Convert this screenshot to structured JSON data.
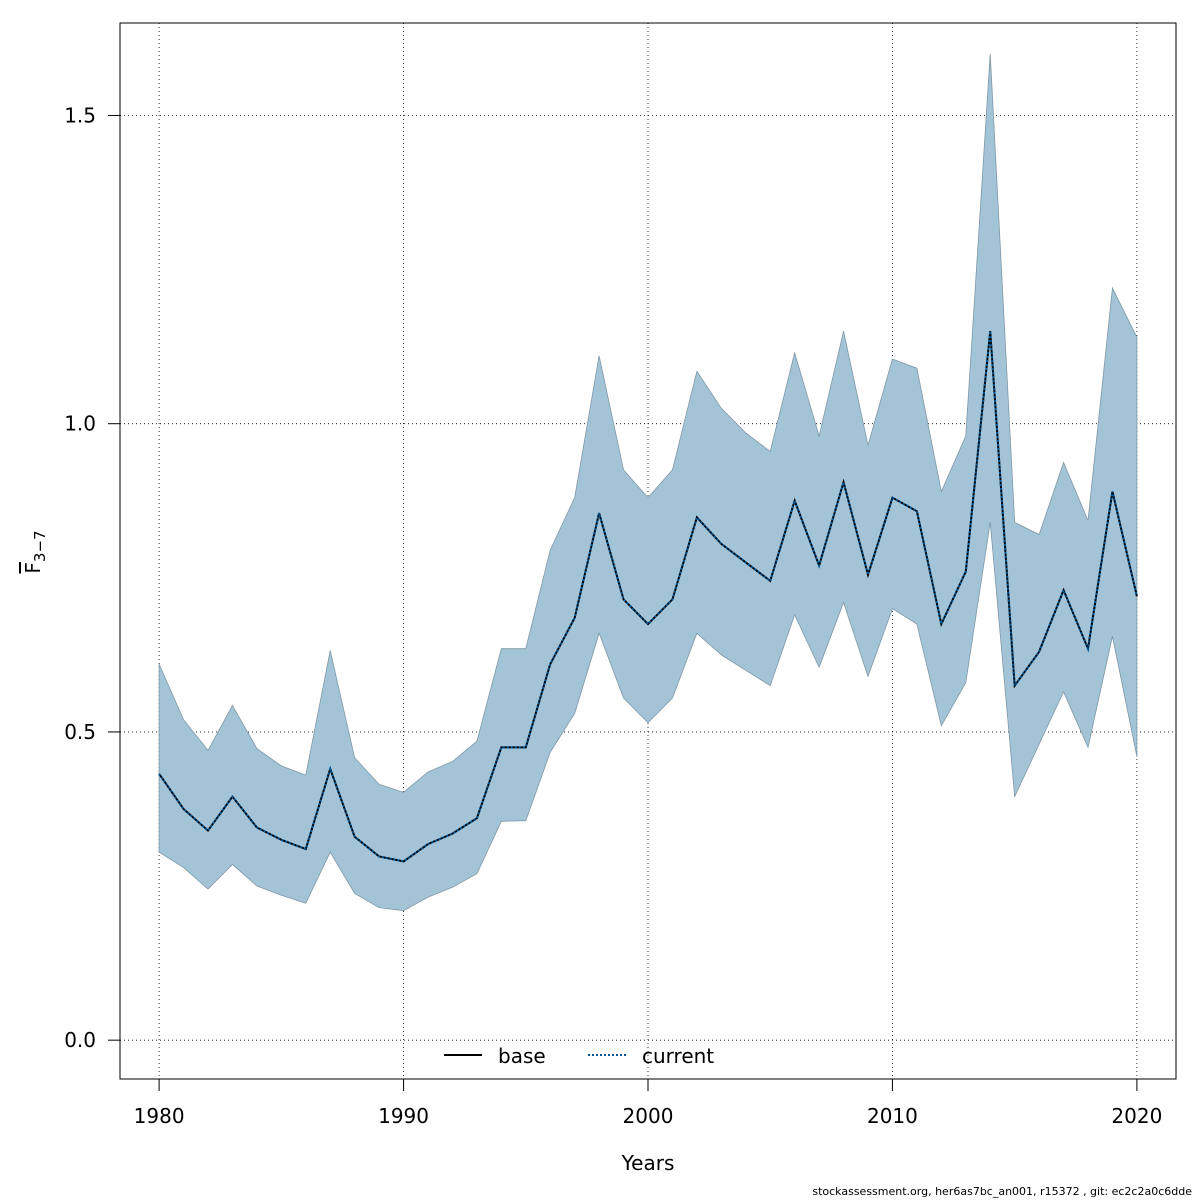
{
  "chart_data": {
    "type": "line",
    "xlabel": "Years",
    "ylabel": "F",
    "ylabel_subscript": "3−7",
    "xlim": [
      1978.4,
      2021.6
    ],
    "ylim": [
      -0.063,
      1.65
    ],
    "xticks": [
      1980,
      1990,
      2000,
      2010,
      2020
    ],
    "xtick_labels": [
      "1980",
      "1990",
      "2000",
      "2010",
      "2020"
    ],
    "yticks": [
      0.0,
      0.5,
      1.0,
      1.5
    ],
    "ytick_labels": [
      "0.0",
      "0.5",
      "1.0",
      "1.5"
    ],
    "grid": true,
    "legend_position": "bottom-center",
    "x": [
      1980,
      1981,
      1982,
      1983,
      1984,
      1985,
      1986,
      1987,
      1988,
      1989,
      1990,
      1991,
      1992,
      1993,
      1994,
      1995,
      1996,
      1997,
      1998,
      1999,
      2000,
      2001,
      2002,
      2003,
      2004,
      2005,
      2006,
      2007,
      2008,
      2009,
      2010,
      2011,
      2012,
      2013,
      2014,
      2015,
      2016,
      2017,
      2018,
      2019,
      2020
    ],
    "band": {
      "color": "#a3c4d6",
      "lower": [
        0.305,
        0.28,
        0.245,
        0.285,
        0.25,
        0.235,
        0.222,
        0.305,
        0.238,
        0.215,
        0.21,
        0.232,
        0.248,
        0.27,
        0.355,
        0.356,
        0.467,
        0.53,
        0.66,
        0.555,
        0.515,
        0.555,
        0.66,
        0.625,
        0.6,
        0.575,
        0.69,
        0.605,
        0.71,
        0.59,
        0.7,
        0.675,
        0.51,
        0.58,
        0.84,
        0.395,
        0.48,
        0.565,
        0.475,
        0.655,
        0.46
      ],
      "upper": [
        0.61,
        0.52,
        0.47,
        0.543,
        0.473,
        0.445,
        0.43,
        0.632,
        0.458,
        0.415,
        0.402,
        0.435,
        0.452,
        0.485,
        0.635,
        0.635,
        0.795,
        0.88,
        1.11,
        0.925,
        0.88,
        0.925,
        1.085,
        1.025,
        0.985,
        0.955,
        1.115,
        0.98,
        1.15,
        0.965,
        1.105,
        1.09,
        0.89,
        0.98,
        1.6,
        0.84,
        0.82,
        0.937,
        0.843,
        1.22,
        1.14
      ]
    },
    "series": [
      {
        "name": "base",
        "color": "#000000",
        "dash": "solid",
        "values": [
          0.432,
          0.375,
          0.34,
          0.395,
          0.345,
          0.325,
          0.31,
          0.44,
          0.33,
          0.298,
          0.29,
          0.318,
          0.335,
          0.36,
          0.475,
          0.475,
          0.61,
          0.685,
          0.855,
          0.715,
          0.675,
          0.715,
          0.848,
          0.805,
          0.775,
          0.745,
          0.875,
          0.77,
          0.905,
          0.755,
          0.88,
          0.858,
          0.675,
          0.76,
          1.15,
          0.575,
          0.63,
          0.73,
          0.635,
          0.89,
          0.72
        ]
      },
      {
        "name": "current",
        "color": "#005a9c",
        "dash": "dotted",
        "values": [
          0.432,
          0.375,
          0.34,
          0.395,
          0.345,
          0.325,
          0.31,
          0.44,
          0.33,
          0.298,
          0.29,
          0.318,
          0.335,
          0.36,
          0.475,
          0.475,
          0.61,
          0.685,
          0.855,
          0.715,
          0.675,
          0.715,
          0.848,
          0.805,
          0.775,
          0.745,
          0.875,
          0.77,
          0.905,
          0.755,
          0.88,
          0.858,
          0.675,
          0.76,
          1.15,
          0.575,
          0.63,
          0.73,
          0.635,
          0.89,
          0.72
        ]
      }
    ]
  },
  "footer": "stockassessment.org, her6as7bc_an001, r15372 , git: ec2c2a0c6dde"
}
